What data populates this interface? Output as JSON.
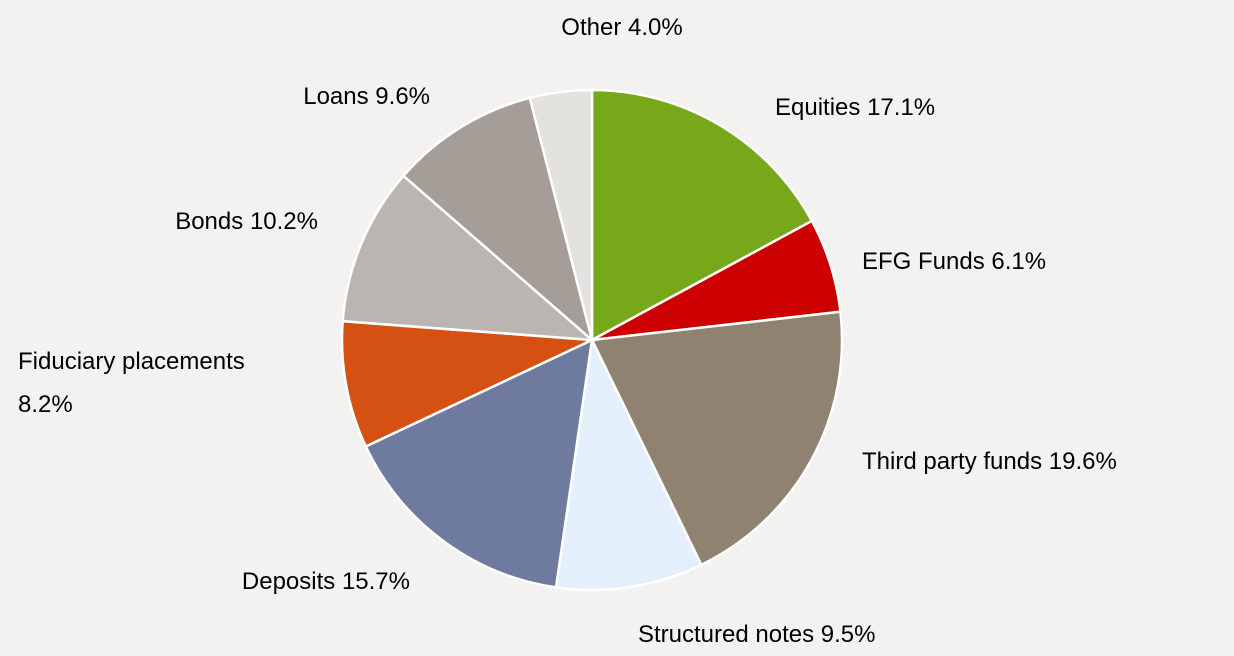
{
  "chart_data": {
    "type": "pie",
    "categories": [
      "Equities",
      "EFG Funds",
      "Third party funds",
      "Structured notes",
      "Deposits",
      "Fiduciary placements",
      "Bonds",
      "Loans",
      "Other"
    ],
    "values": [
      17.1,
      6.1,
      19.6,
      9.5,
      15.7,
      8.2,
      10.2,
      9.6,
      4.0
    ],
    "value_labels": [
      "17.1%",
      "6.1%",
      "19.6%",
      "9.5%",
      "15.7%",
      "8.2%",
      "10.2%",
      "9.6%",
      "4.0%"
    ],
    "colors": [
      "#76a81a",
      "#cc0000",
      "#8f8270",
      "#e3f0fb",
      "#6e7a9e",
      "#d45113",
      "#bab5b0",
      "#a59e98",
      "#e4e2df"
    ]
  }
}
